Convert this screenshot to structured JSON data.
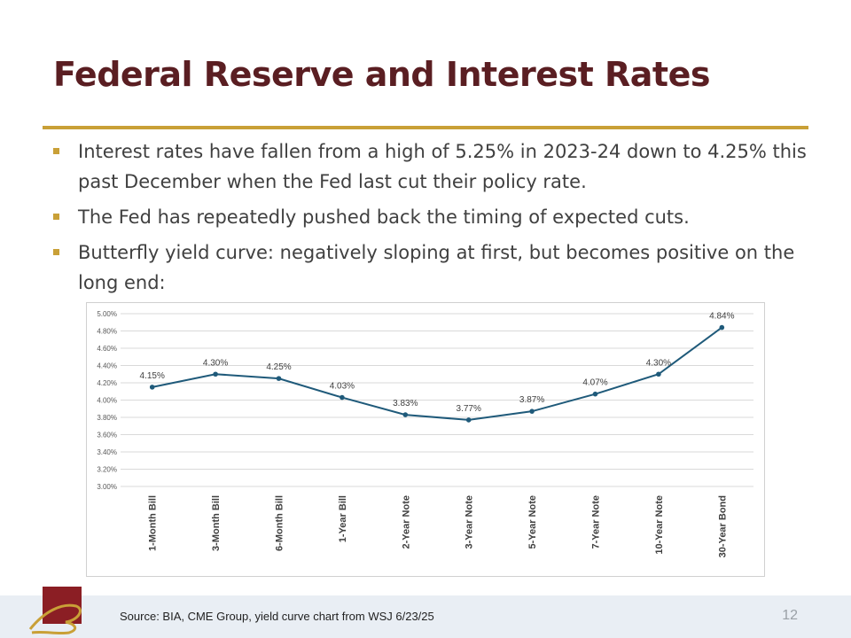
{
  "slide": {
    "title": "Federal Reserve and Interest Rates",
    "bullets": [
      "Interest rates have fallen from a high of 5.25% in 2023-24 down to 4.25% this past December when the Fed last cut their policy rate.",
      "The Fed has repeatedly pushed back the timing of expected cuts.",
      "Butterfly yield curve: negatively sloping at first, but becomes positive on the long end:"
    ],
    "source": "Source: BIA, CME Group, yield curve chart from WSJ 6/23/25",
    "page_number": "12"
  },
  "colors": {
    "title": "#5a1e22",
    "accent": "#c9a037",
    "line": "#1f5a7a",
    "footer_bg": "#e9eef4"
  },
  "logo": {
    "icon": "company-logo-icon"
  },
  "chart_data": {
    "type": "line",
    "categories": [
      "1-Month Bill",
      "3-Month Bill",
      "6-Month Bill",
      "1-Year Bill",
      "2-Year Note",
      "3-Year Note",
      "5-Year Note",
      "7-Year Note",
      "10-Year Note",
      "30-Year Bond"
    ],
    "values": [
      4.15,
      4.3,
      4.25,
      4.03,
      3.83,
      3.77,
      3.87,
      4.07,
      4.3,
      4.84
    ],
    "data_labels": [
      "4.15%",
      "4.30%",
      "4.25%",
      "4.03%",
      "3.83%",
      "3.77%",
      "3.87%",
      "4.07%",
      "4.30%",
      "4.84%"
    ],
    "ylim": [
      3.0,
      5.0
    ],
    "y_ticks": [
      5.0,
      4.8,
      4.6,
      4.4,
      4.2,
      4.0,
      3.8,
      3.6,
      3.4,
      3.2,
      3.0
    ],
    "y_tick_labels": [
      "5.00%",
      "4.80%",
      "4.60%",
      "4.40%",
      "4.20%",
      "4.00%",
      "3.80%",
      "3.60%",
      "3.40%",
      "3.20%",
      "3.00%"
    ],
    "grid": true,
    "legend": "none"
  }
}
